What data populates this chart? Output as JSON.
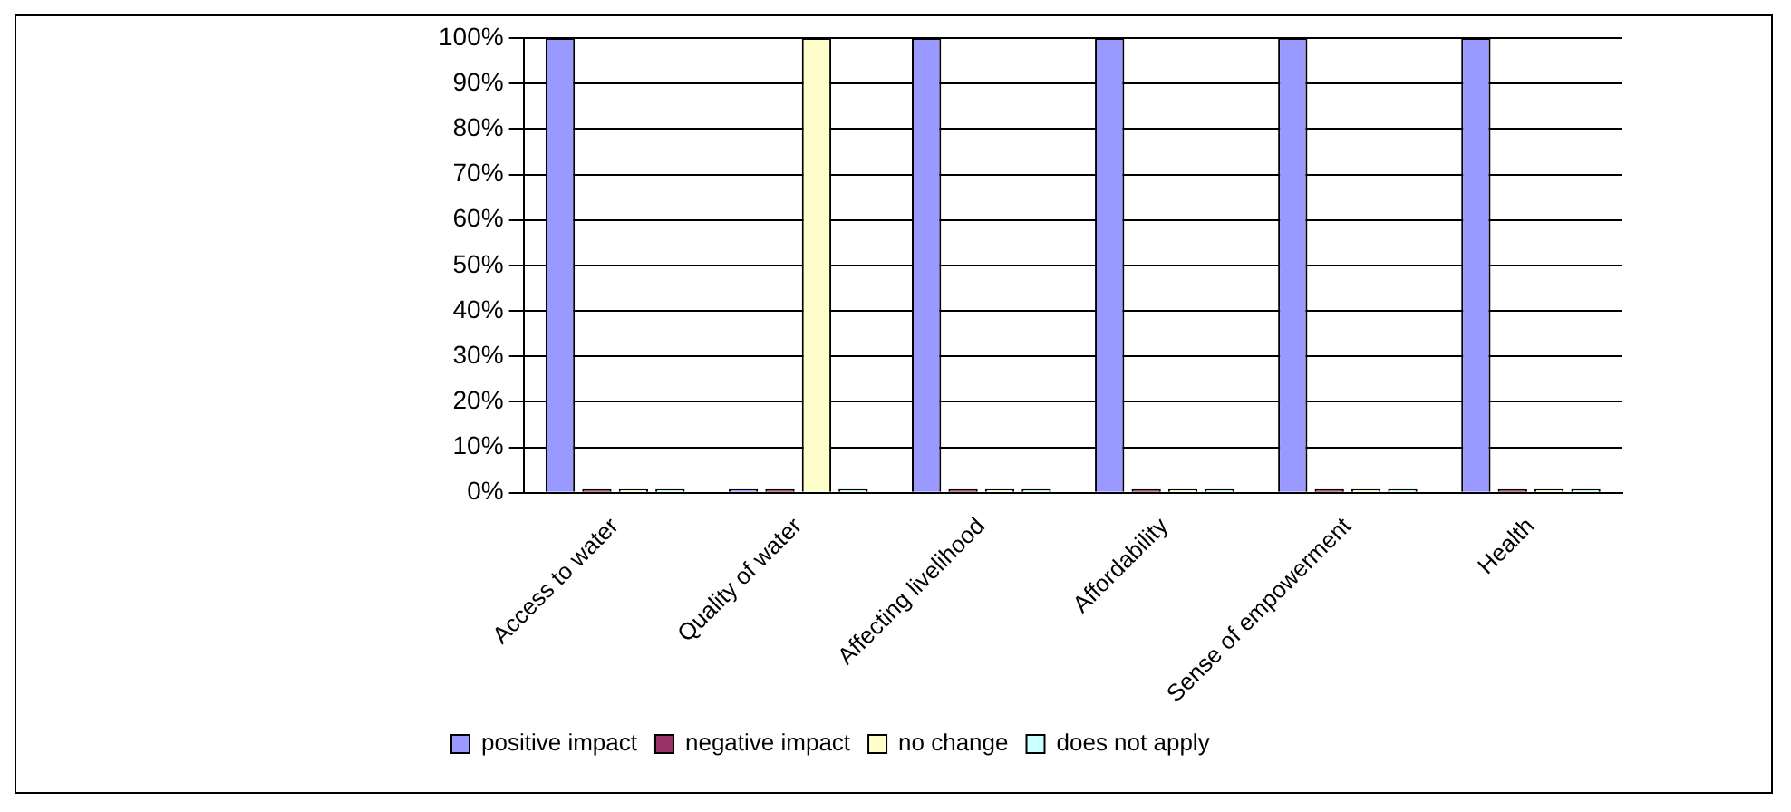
{
  "chart_data": {
    "type": "bar",
    "categories": [
      "Access to water",
      "Quality of water",
      "Affecting livelihood",
      "Affordability",
      "Sense of empowerment",
      "Health"
    ],
    "series": [
      {
        "name": "positive impact",
        "color": "#9999ff",
        "values": [
          100,
          0,
          100,
          100,
          100,
          100
        ]
      },
      {
        "name": "negative impact",
        "color": "#993366",
        "values": [
          0,
          0,
          0,
          0,
          0,
          0
        ]
      },
      {
        "name": "no change",
        "color": "#ffffcc",
        "values": [
          0,
          100,
          0,
          0,
          0,
          0
        ]
      },
      {
        "name": "does not apply",
        "color": "#ccffff",
        "values": [
          0,
          0,
          0,
          0,
          0,
          0
        ]
      }
    ],
    "ylim": [
      0,
      100
    ],
    "yticks": [
      {
        "value": 0,
        "label": "0%"
      },
      {
        "value": 10,
        "label": "10%"
      },
      {
        "value": 20,
        "label": "20%"
      },
      {
        "value": 30,
        "label": "30%"
      },
      {
        "value": 40,
        "label": "40%"
      },
      {
        "value": 50,
        "label": "50%"
      },
      {
        "value": 60,
        "label": "60%"
      },
      {
        "value": 70,
        "label": "70%"
      },
      {
        "value": 80,
        "label": "80%"
      },
      {
        "value": 90,
        "label": "90%"
      },
      {
        "value": 100,
        "label": "100%"
      }
    ],
    "grid": "y",
    "legend": "bottom left"
  }
}
